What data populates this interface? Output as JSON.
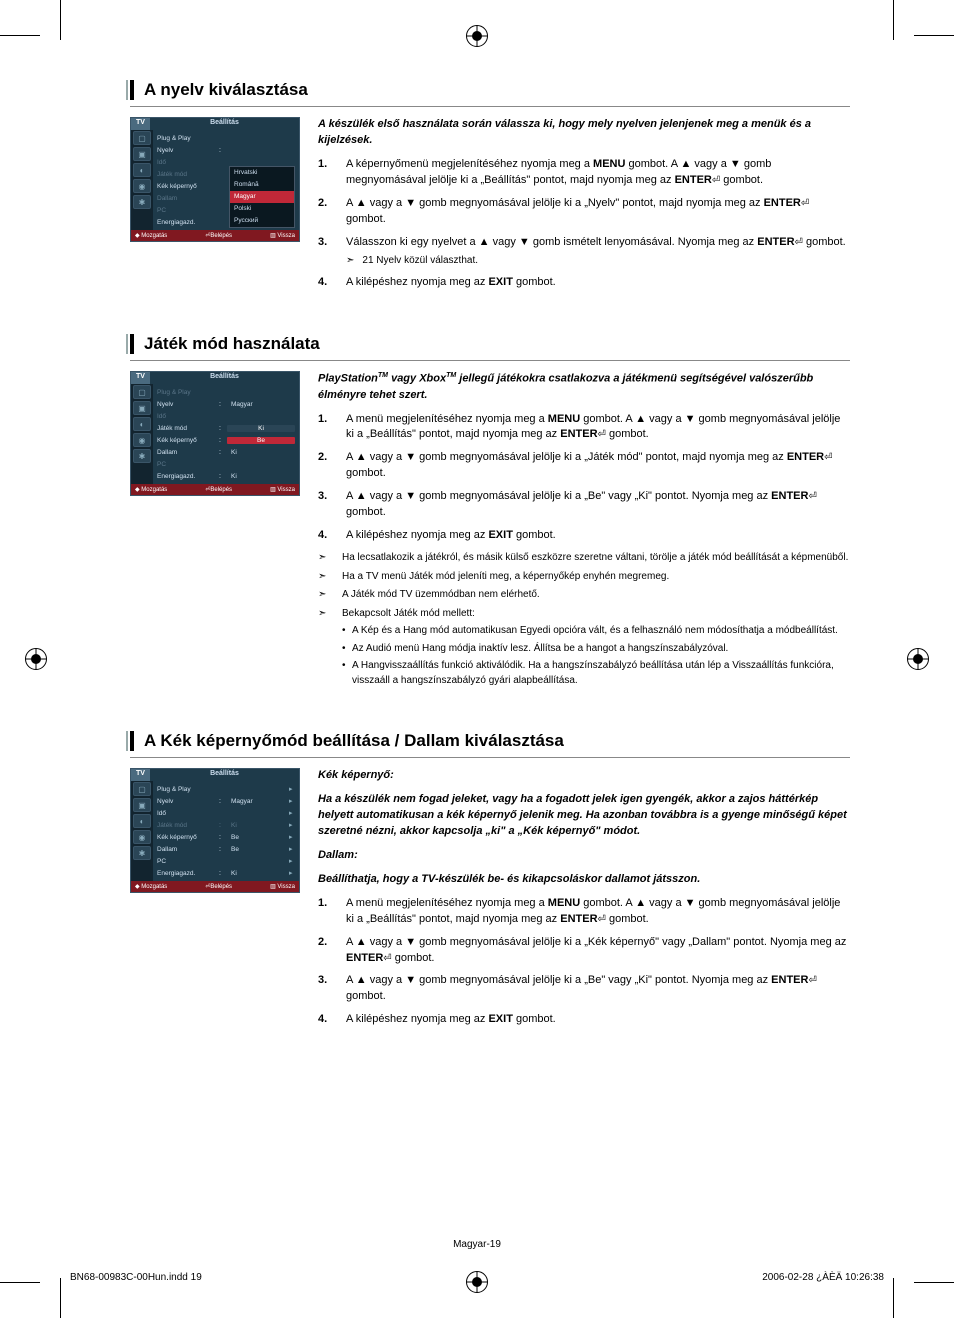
{
  "page": {
    "footer": "Magyar-19",
    "file_name": "BN68-00983C-00Hun.indd   19",
    "file_timestamp": "2006-02-28   ¿ÀÈÄ 10:26:38"
  },
  "section1": {
    "heading": "A nyelv kiválasztása",
    "intro": "A készülék első használata során válassza ki, hogy mely nyelven jelenjenek meg a menük és a kijelzések.",
    "tv": {
      "tab": "TV",
      "title": "Beállítás",
      "rows": [
        {
          "label": "Plug & Play",
          "value": "",
          "dim": false
        },
        {
          "label": "Nyelv",
          "value": "",
          "dim": false,
          "colon": ":"
        },
        {
          "label": "Idő",
          "value": "",
          "dim": true
        }
      ],
      "dropdown_rows": [
        {
          "label": "Játék mód",
          "opts": [
            "Hrvatski"
          ],
          "dim": true
        },
        {
          "label": "Kék képernyő",
          "opts": [
            "Română"
          ],
          "dim": false
        },
        {
          "label": "Dallam",
          "opts": [
            "Magyar"
          ],
          "sel": 0,
          "dim": true
        },
        {
          "label": "PC",
          "opts": [
            "Polski"
          ],
          "dim": true
        },
        {
          "label": "Energiagazd.",
          "opts": [
            "Русский"
          ],
          "dim": false
        }
      ],
      "dropdown_opts": [
        "Hrvatski",
        "Română",
        "Magyar",
        "Polski",
        "Русский"
      ],
      "dropdown_sel": 2,
      "footer": {
        "move": "◆ Mozgatás",
        "enter": "⏎Belépés",
        "back": "▥ Vissza"
      }
    },
    "steps": [
      {
        "n": "1.",
        "t_before": "A képernyőmenü megjelenítéséhez nyomja meg a ",
        "bold1": "MENU",
        "t_mid": " gombot. A ▲ vagy a ▼ gomb megnyomásával jelölje ki a „Beállítás\" pontot, majd nyomja meg az ",
        "bold2": "ENTER",
        "t_after": " gombot."
      },
      {
        "n": "2.",
        "t_before": "A ▲ vagy a ▼ gomb megnyomásával jelölje ki a „Nyelv\" pontot, majd nyomja meg az ",
        "bold2": "ENTER",
        "t_after": " gombot."
      },
      {
        "n": "3.",
        "t_before": "Válasszon ki egy nyelvet a ▲ vagy ▼ gomb ismételt lenyomásával. Nyomja meg az ",
        "bold2": "ENTER",
        "t_after": " gombot.",
        "note": "21 Nyelv közül választhat."
      },
      {
        "n": "4.",
        "t_before": "A kilépéshez nyomja meg az ",
        "bold1": "EXIT",
        "t_after": " gombot."
      }
    ]
  },
  "section2": {
    "heading": "Játék mód használata",
    "intro_before": "PlayStation",
    "intro_tm1": "TM",
    "intro_mid": " vagy Xbox",
    "intro_tm2": "TM",
    "intro_after": " jellegű játékokra csatlakozva a játékmenü segítségével valószerűbb élményre tehet szert.",
    "tv": {
      "tab": "TV",
      "title": "Beállítás",
      "rows": [
        {
          "label": "Plug & Play",
          "value": "",
          "dim": true
        },
        {
          "label": "Nyelv",
          "value": "Magyar",
          "colon": ":",
          "dim": false
        },
        {
          "label": "Idő",
          "value": "",
          "dim": true
        },
        {
          "label": "Játék mód",
          "value": "Ki",
          "colon": ":",
          "dim": false,
          "highlight": true,
          "hlcolor": "dark"
        },
        {
          "label": "Kék képernyő",
          "value": "Be",
          "colon": ":",
          "dim": false,
          "highlight": true
        },
        {
          "label": "Dallam",
          "value": "Ki",
          "colon": ":",
          "dim": false
        },
        {
          "label": "PC",
          "value": "",
          "dim": true
        },
        {
          "label": "Energiagazd.",
          "value": "Ki",
          "colon": ":",
          "dim": false
        }
      ],
      "footer": {
        "move": "◆ Mozgatás",
        "enter": "⏎Belépés",
        "back": "▥ Vissza"
      }
    },
    "steps": [
      {
        "n": "1.",
        "t_before": "A menü megjelenítéséhez nyomja meg a ",
        "bold1": "MENU",
        "t_mid": " gombot. A ▲ vagy a ▼ gomb megnyomásával jelölje ki a „Beállítás\" pontot, majd nyomja meg az ",
        "bold2": "ENTER",
        "t_after": " gombot."
      },
      {
        "n": "2.",
        "t_before": "A ▲ vagy a ▼ gomb megnyomásával jelölje ki a „Játék mód\" pontot, majd nyomja meg az ",
        "bold2": "ENTER",
        "t_after": " gombot."
      },
      {
        "n": "3.",
        "t_before": "A ▲ vagy a ▼ gomb megnyomásával jelölje ki a „Be\" vagy „Ki\" pontot. Nyomja meg az ",
        "bold2": "ENTER",
        "t_after": " gombot."
      },
      {
        "n": "4.",
        "t_before": "A kilépéshez nyomja meg az ",
        "bold1": "EXIT",
        "t_after": " gombot."
      }
    ],
    "notes": [
      {
        "t": "Ha lecsatlakozik a játékról, és másik külső eszközre szeretne váltani, törölje a játék mód beállítását a képmenüből."
      },
      {
        "t": "Ha a TV menü Játék mód jeleníti meg, a képernyőkép enyhén megremeg."
      },
      {
        "t": "A Játék mód TV üzemmódban nem elérhető."
      },
      {
        "t": "Bekapcsolt Játék mód mellett:",
        "subs": [
          "A Kép és a Hang mód automatikusan Egyedi opcióra vált, és a felhasználó nem módosíthatja a módbeállítást.",
          "Az Audió menü Hang módja inaktív lesz. Állítsa be a hangot a hangszínszabályzóval.",
          "A Hangvisszaállítás funkció aktiválódik. Ha a hangszínszabályzó beállítása után lép a Visszaállítás funkcióra, visszaáll a hangszínszabályzó gyári alapbeállítása."
        ]
      }
    ]
  },
  "section3": {
    "heading": "A Kék képernyőmód beállítása / Dallam kiválasztása",
    "intro1_label": "Kék képernyő:",
    "intro1": "Ha a készülék nem fogad jeleket, vagy ha a fogadott jelek igen gyengék, akkor a zajos háttérkép helyett automatikusan a kék képernyő jelenik meg. Ha azonban továbbra is a gyenge minőségű képet szeretné nézni, akkor kapcsolja „ki\" a „Kék képernyő\" módot.",
    "intro2_label": "Dallam:",
    "intro2": "Beállíthatja, hogy a TV-készülék be- és kikapcsoláskor dallamot játsszon.",
    "tv": {
      "tab": "TV",
      "title": "Beállítás",
      "rows": [
        {
          "label": "Plug & Play",
          "value": "",
          "dim": false,
          "chev": true
        },
        {
          "label": "Nyelv",
          "value": "Magyar",
          "colon": ":",
          "dim": false,
          "chev": true
        },
        {
          "label": "Idő",
          "value": "",
          "dim": false,
          "chev": true
        },
        {
          "label": "Játék mód",
          "value": "Ki",
          "colon": ":",
          "dim": true,
          "chev": true
        },
        {
          "label": "Kék képernyő",
          "value": "Be",
          "colon": ":",
          "dim": false,
          "chev": true
        },
        {
          "label": "Dallam",
          "value": "Be",
          "colon": ":",
          "dim": false,
          "chev": true
        },
        {
          "label": "PC",
          "value": "",
          "dim": false,
          "chev": true
        },
        {
          "label": "Energiagazd.",
          "value": "Ki",
          "colon": ":",
          "dim": false,
          "chev": true
        }
      ],
      "footer": {
        "move": "◆ Mozgatás",
        "enter": "⏎Belépés",
        "back": "▥ Vissza"
      }
    },
    "steps": [
      {
        "n": "1.",
        "t_before": "A menü megjelenítéséhez nyomja meg a ",
        "bold1": "MENU",
        "t_mid": " gombot. A ▲ vagy a ▼ gomb megnyomásával jelölje ki a „Beállítás\" pontot, majd nyomja meg az ",
        "bold2": "ENTER",
        "t_after": " gombot."
      },
      {
        "n": "2.",
        "t_before": "A ▲ vagy a ▼ gomb megnyomásával jelölje ki a „Kék képernyő\" vagy „Dallam\" pontot. Nyomja meg az ",
        "bold2": "ENTER",
        "t_after": " gombot."
      },
      {
        "n": "3.",
        "t_before": "A ▲ vagy a ▼ gomb megnyomásával jelölje ki a „Be\" vagy „Ki\" pontot. Nyomja meg az ",
        "bold2": "ENTER",
        "t_after": " gombot."
      },
      {
        "n": "4.",
        "t_before": "A kilépéshez nyomja meg az ",
        "bold1": "EXIT",
        "t_after": " gombot."
      }
    ]
  },
  "icons": {
    "arrow_note": "➣",
    "enter": "⏎",
    "up": "▲",
    "down": "▼"
  }
}
